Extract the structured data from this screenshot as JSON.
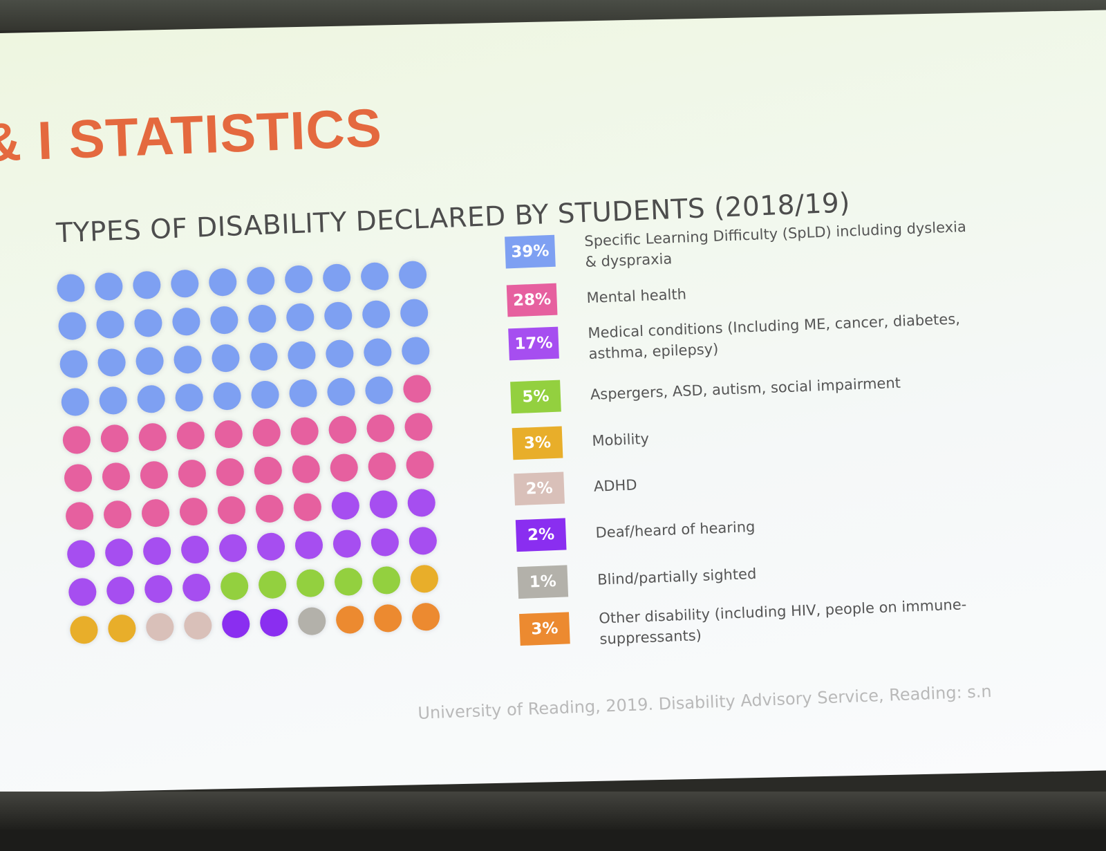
{
  "slide": {
    "title": "& I STATISTICS",
    "citation": "University of Reading, 2019. Disability Advisory Service, Reading: s.n"
  },
  "chart_data": {
    "type": "waffle",
    "title": "TYPES OF DISABILITY DECLARED BY STUDENTS (2018/19)",
    "grid": {
      "rows": 10,
      "cols": 10
    },
    "categories": [
      {
        "label": "Specific Learning Difficulty (SpLD) including dyslexia & dyspraxia",
        "percent_label": "39%",
        "value": 39,
        "color": "#7ea0f2"
      },
      {
        "label": "Mental health",
        "percent_label": "28%",
        "value": 28,
        "color": "#e6609f"
      },
      {
        "label": "Medical conditions (Including ME, cancer, diabetes, asthma, epilepsy)",
        "percent_label": "17%",
        "value": 17,
        "color": "#a64ef0"
      },
      {
        "label": "Aspergers, ASD, autism, social impairment",
        "percent_label": "5%",
        "value": 5,
        "color": "#93d03f"
      },
      {
        "label": "Mobility",
        "percent_label": "3%",
        "value": 3,
        "color": "#e8ae2a"
      },
      {
        "label": "ADHD",
        "percent_label": "2%",
        "value": 2,
        "color": "#d9c0b9"
      },
      {
        "label": "Deaf/heard of hearing",
        "percent_label": "2%",
        "value": 2,
        "color": "#8a2ef0"
      },
      {
        "label": "Blind/partially sighted",
        "percent_label": "1%",
        "value": 1,
        "color": "#b3b1aa"
      },
      {
        "label": "Other disability (including HIV, people on immune-suppressants)",
        "percent_label": "3%",
        "value": 3,
        "color": "#ec8a30"
      }
    ]
  }
}
